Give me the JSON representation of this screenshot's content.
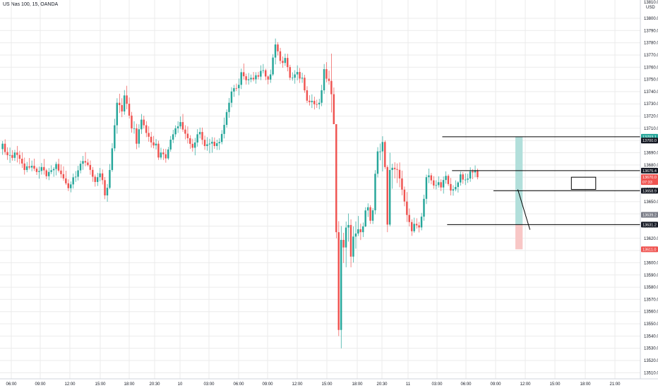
{
  "header": {
    "title": "US Nas 100, 15, OANDA"
  },
  "colors": {
    "up": "#26a69a",
    "down": "#ef5350",
    "grid": "#ebebeb",
    "line": "#000000",
    "highlight_up": "#b2dfdb",
    "highlight_down": "#f8c7c6",
    "price_gray": "#787b86"
  },
  "chart_data": {
    "type": "candlestick",
    "ylim": [
      13505,
      13815
    ],
    "currency_label": "USD",
    "y_ticks": [
      13510,
      13520,
      13530,
      13540,
      13550,
      13560,
      13570,
      13580,
      13590,
      13600,
      13610,
      13620,
      13630,
      13640,
      13650,
      13660,
      13670,
      13680,
      13690,
      13700,
      13710,
      13720,
      13730,
      13740,
      13750,
      13760,
      13770,
      13780,
      13790,
      13800
    ],
    "top_tick_label": "13810.0",
    "x_tick_labels": [
      "06:00",
      "09:00",
      "12:00",
      "15:00",
      "18:00",
      "20:30",
      "10",
      "03:00",
      "06:00",
      "09:00",
      "12:00",
      "15:00",
      "18:00",
      "20:30",
      "11",
      "03:00",
      "06:00",
      "09:00",
      "12:00",
      "15:00",
      "18:00",
      "21:00"
    ],
    "price_badges": [
      {
        "value": 13703.1,
        "label": "13703.1",
        "style": "up"
      },
      {
        "value": 13700.0,
        "label": "13700.0",
        "style": "dark"
      },
      {
        "value": 13675.4,
        "label": "13675.4",
        "style": "dark"
      },
      {
        "value": 13670.0,
        "label": "13670.0",
        "style": "down"
      },
      {
        "value": 13666.0,
        "label": "07:33",
        "style": "down"
      },
      {
        "value": 13658.9,
        "label": "13658.9",
        "style": "dark"
      },
      {
        "value": 13639.2,
        "label": "13639.2",
        "style": "gray"
      },
      {
        "value": 13631.2,
        "label": "13631.2",
        "style": "dark"
      },
      {
        "value": 13611.0,
        "label": "13611.0",
        "style": "down"
      }
    ],
    "drawings": {
      "horizontal_lines": [
        {
          "price": 13703.1,
          "from_bar": 181
        },
        {
          "price": 13675.4,
          "from_bar": 185
        },
        {
          "price": 13658.9,
          "from_bar": 202
        },
        {
          "price": 13631.2,
          "from_bar": 183
        }
      ],
      "trend_line": {
        "from_bar": 212,
        "from_price": 13660,
        "to_bar": 217,
        "to_price": 13627
      },
      "box": {
        "from_bar": 234,
        "to_bar": 244,
        "top": 13670,
        "bottom": 13660
      },
      "highlight_up": {
        "from_bar": 211,
        "to_bar": 214,
        "top": 13703,
        "bottom": 13631
      },
      "highlight_down": {
        "from_bar": 211,
        "to_bar": 214,
        "top": 13631,
        "bottom": 13611
      }
    },
    "series_ohlc": [
      [
        13693.0,
        13699.6,
        13688.3,
        13697.4
      ],
      [
        13697.4,
        13701.0,
        13688.3,
        13690.6
      ],
      [
        13690.6,
        13694.5,
        13684.2,
        13688.0
      ],
      [
        13688.0,
        13694.3,
        13681.7,
        13688.1
      ],
      [
        13688.1,
        13692.1,
        13683.5,
        13685.8
      ],
      [
        13685.8,
        13692.3,
        13683.3,
        13690.2
      ],
      [
        13690.2,
        13695.6,
        13682.1,
        13688.2
      ],
      [
        13688.2,
        13691.7,
        13680.7,
        13685.1
      ],
      [
        13685.1,
        13690.4,
        13677.6,
        13681.2
      ],
      [
        13681.2,
        13686.0,
        13672.1,
        13675.9
      ],
      [
        13675.9,
        13682.5,
        13674.0,
        13678.9
      ],
      [
        13678.9,
        13685.7,
        13676.3,
        13677.9
      ],
      [
        13677.9,
        13683.6,
        13674.8,
        13679.3
      ],
      [
        13679.3,
        13685.2,
        13675.1,
        13677.0
      ],
      [
        13677.0,
        13678.4,
        13671.8,
        13674.3
      ],
      [
        13674.3,
        13678.7,
        13668.8,
        13675.1
      ],
      [
        13675.1,
        13681.6,
        13672.1,
        13678.3
      ],
      [
        13678.3,
        13685.0,
        13672.1,
        13675.6
      ],
      [
        13675.6,
        13676.9,
        13668.3,
        13670.8
      ],
      [
        13670.8,
        13677.5,
        13667.6,
        13674.3
      ],
      [
        13674.3,
        13679.7,
        13672.5,
        13675.7
      ],
      [
        13675.7,
        13678.3,
        13670.4,
        13676.7
      ],
      [
        13676.7,
        13682.6,
        13671.5,
        13680.8
      ],
      [
        13680.8,
        13685.1,
        13673.9,
        13675.4
      ],
      [
        13675.4,
        13680.4,
        13669.3,
        13672.5
      ],
      [
        13672.5,
        13678.9,
        13667.1,
        13669.0
      ],
      [
        13669.0,
        13675.3,
        13663.6,
        13665.0
      ],
      [
        13665.0,
        13668.2,
        13658.6,
        13661.0
      ],
      [
        13661.0,
        13666.5,
        13657.6,
        13664.1
      ],
      [
        13664.1,
        13673.0,
        13660.7,
        13669.9
      ],
      [
        13669.9,
        13675.0,
        13666.2,
        13670.4
      ],
      [
        13670.4,
        13679.3,
        13667.3,
        13675.6
      ],
      [
        13675.6,
        13683.5,
        13673.1,
        13681.0
      ],
      [
        13681.0,
        13687.4,
        13676.0,
        13683.2
      ],
      [
        13683.2,
        13690.5,
        13679.0,
        13682.0
      ],
      [
        13682.0,
        13685.0,
        13678.8,
        13680.0
      ],
      [
        13680.0,
        13683.7,
        13672.0,
        13676.0
      ],
      [
        13676.0,
        13678.3,
        13666.2,
        13670.4
      ],
      [
        13670.4,
        13672.2,
        13662.3,
        13666.1
      ],
      [
        13666.1,
        13673.6,
        13662.8,
        13670.0
      ],
      [
        13670.0,
        13677.6,
        13666.6,
        13673.1
      ],
      [
        13673.1,
        13676.3,
        13664.0,
        13667.6
      ],
      [
        13667.6,
        13670.1,
        13652.0,
        13655.1
      ],
      [
        13655.1,
        13664.5,
        13649.9,
        13661.3
      ],
      [
        13661.3,
        13680.8,
        13660.3,
        13675.9
      ],
      [
        13675.9,
        13697.9,
        13674.4,
        13693.6
      ],
      [
        13693.6,
        13717.8,
        13691.2,
        13712.5
      ],
      [
        13712.5,
        13734.6,
        13705.6,
        13730.9
      ],
      [
        13730.9,
        13738.3,
        13722.5,
        13729.0
      ],
      [
        13729.0,
        13734.6,
        13719.1,
        13723.8
      ],
      [
        13723.8,
        13741.3,
        13721.1,
        13736.9
      ],
      [
        13736.9,
        13744.8,
        13725.6,
        13730.1
      ],
      [
        13730.1,
        13735.2,
        13718.0,
        13720.4
      ],
      [
        13720.4,
        13723.4,
        13706.5,
        13709.9
      ],
      [
        13709.9,
        13715.8,
        13705.6,
        13710.0
      ],
      [
        13710.0,
        13713.7,
        13692.9,
        13697.4
      ],
      [
        13697.4,
        13713.3,
        13694.2,
        13709.2
      ],
      [
        13709.2,
        13721.7,
        13705.4,
        13717.1
      ],
      [
        13717.1,
        13720.3,
        13709.8,
        13712.5
      ],
      [
        13712.5,
        13715.8,
        13702.8,
        13706.2
      ],
      [
        13706.2,
        13711.7,
        13699.0,
        13703.1
      ],
      [
        13703.1,
        13707.1,
        13694.2,
        13698.5
      ],
      [
        13698.5,
        13703.7,
        13693.6,
        13696.0
      ],
      [
        13696.0,
        13701.2,
        13692.6,
        13697.4
      ],
      [
        13697.4,
        13699.8,
        13684.1,
        13686.1
      ],
      [
        13686.1,
        13694.1,
        13684.4,
        13690.2
      ],
      [
        13690.2,
        13693.3,
        13684.1,
        13688.8
      ],
      [
        13688.8,
        13693.2,
        13681.9,
        13685.4
      ],
      [
        13685.4,
        13694.8,
        13684.2,
        13692.7
      ],
      [
        13692.7,
        13703.7,
        13690.9,
        13700.7
      ],
      [
        13700.7,
        13708.8,
        13697.9,
        13705.1
      ],
      [
        13705.1,
        13712.4,
        13702.8,
        13710.0
      ],
      [
        13710.0,
        13715.7,
        13706.2,
        13711.6
      ],
      [
        13711.6,
        13719.7,
        13709.6,
        13715.1
      ],
      [
        13715.1,
        13721.8,
        13707.1,
        13709.0
      ],
      [
        13709.0,
        13712.5,
        13700.9,
        13705.6
      ],
      [
        13705.6,
        13711.6,
        13697.6,
        13701.9
      ],
      [
        13701.9,
        13704.4,
        13693.3,
        13697.3
      ],
      [
        13697.3,
        13701.5,
        13690.9,
        13694.1
      ],
      [
        13694.1,
        13702.2,
        13687.9,
        13698.4
      ],
      [
        13698.4,
        13709.3,
        13695.0,
        13705.1
      ],
      [
        13705.1,
        13710.6,
        13701.7,
        13707.0
      ],
      [
        13707.0,
        13710.6,
        13696.7,
        13700.6
      ],
      [
        13700.6,
        13704.0,
        13692.4,
        13695.5
      ],
      [
        13695.5,
        13702.8,
        13691.7,
        13696.9
      ],
      [
        13696.9,
        13701.4,
        13689.6,
        13697.5
      ],
      [
        13697.5,
        13702.8,
        13690.0,
        13699.0
      ],
      [
        13699.0,
        13702.5,
        13693.2,
        13695.5
      ],
      [
        13695.5,
        13700.7,
        13692.3,
        13697.8
      ],
      [
        13697.8,
        13701.9,
        13692.3,
        13698.8
      ],
      [
        13698.8,
        13708.6,
        13696.9,
        13705.4
      ],
      [
        13705.4,
        13718.8,
        13701.7,
        13712.8
      ],
      [
        13712.8,
        13725.5,
        13710.6,
        13723.3
      ],
      [
        13723.3,
        13734.8,
        13718.6,
        13730.9
      ],
      [
        13730.9,
        13743.6,
        13727.2,
        13740.1
      ],
      [
        13740.1,
        13745.6,
        13735.7,
        13742.9
      ],
      [
        13742.9,
        13746.6,
        13740.5,
        13742.8
      ],
      [
        13742.8,
        13750.7,
        13736.9,
        13745.6
      ],
      [
        13745.6,
        13758.9,
        13742.1,
        13755.9
      ],
      [
        13755.9,
        13763.0,
        13750.0,
        13752.6
      ],
      [
        13752.6,
        13754.7,
        13745.8,
        13749.4
      ],
      [
        13749.4,
        13755.3,
        13745.8,
        13750.1
      ],
      [
        13750.1,
        13754.0,
        13747.7,
        13751.3
      ],
      [
        13751.3,
        13756.1,
        13748.5,
        13750.1
      ],
      [
        13750.1,
        13755.9,
        13746.5,
        13753.4
      ],
      [
        13753.4,
        13756.2,
        13750.1,
        13752.3
      ],
      [
        13752.3,
        13761.5,
        13749.4,
        13757.0
      ],
      [
        13757.0,
        13762.6,
        13754.9,
        13757.5
      ],
      [
        13757.5,
        13758.8,
        13749.4,
        13752.4
      ],
      [
        13752.4,
        13753.2,
        13746.0,
        13749.9
      ],
      [
        13749.9,
        13758.1,
        13747.2,
        13754.1
      ],
      [
        13754.1,
        13770.7,
        13752.8,
        13767.9
      ],
      [
        13767.9,
        13783.5,
        13762.3,
        13778.6
      ],
      [
        13778.6,
        13780.5,
        13769.6,
        13773.0
      ],
      [
        13773.0,
        13775.8,
        13762.6,
        13765.2
      ],
      [
        13765.2,
        13768.8,
        13759.6,
        13763.5
      ],
      [
        13763.5,
        13771.1,
        13761.1,
        13767.6
      ],
      [
        13767.6,
        13771.0,
        13756.6,
        13760.1
      ],
      [
        13760.1,
        13762.0,
        13749.4,
        13751.4
      ],
      [
        13751.4,
        13755.8,
        13749.0,
        13751.4
      ],
      [
        13751.4,
        13757.6,
        13746.5,
        13754.1
      ],
      [
        13754.1,
        13761.5,
        13749.3,
        13756.1
      ],
      [
        13756.1,
        13759.4,
        13747.1,
        13750.7
      ],
      [
        13750.7,
        13755.5,
        13747.2,
        13751.4
      ],
      [
        13751.4,
        13753.8,
        13739.1,
        13741.1
      ],
      [
        13741.1,
        13744.4,
        13730.7,
        13732.6
      ],
      [
        13732.6,
        13737.1,
        13728.6,
        13731.4
      ],
      [
        13731.4,
        13737.8,
        13726.6,
        13732.5
      ],
      [
        13732.5,
        13735.9,
        13725.4,
        13729.7
      ],
      [
        13729.7,
        13733.4,
        13726.7,
        13729.6
      ],
      [
        13729.6,
        13734.2,
        13725.6,
        13730.9
      ],
      [
        13730.9,
        13745.6,
        13728.1,
        13741.1
      ],
      [
        13741.1,
        13762.6,
        13738.2,
        13758.4
      ],
      [
        13758.4,
        13764.1,
        13747.7,
        13750.6
      ],
      [
        13750.6,
        13757.2,
        13745.7,
        13748.8
      ],
      [
        13748.8,
        13771.1,
        13723.0,
        13737.9
      ],
      [
        13737.9,
        13743.4,
        13715.0,
        13713.4
      ],
      [
        13713.4,
        13709.0,
        13620.0,
        13625.0
      ],
      [
        13625.0,
        13634.0,
        13540.0,
        13545.0
      ],
      [
        13545.0,
        13630.0,
        13530.0,
        13618.7
      ],
      [
        13618.7,
        13624.5,
        13599.8,
        13612.5
      ],
      [
        13612.5,
        13633.7,
        13596.3,
        13628.8
      ],
      [
        13628.8,
        13640.3,
        13617.3,
        13630.9
      ],
      [
        13630.9,
        13635.5,
        13596.3,
        13605.0
      ],
      [
        13605.0,
        13629.7,
        13600.2,
        13621.4
      ],
      [
        13621.4,
        13633.8,
        13611.5,
        13623.9
      ],
      [
        13623.9,
        13638.3,
        13621.9,
        13627.4
      ],
      [
        13627.4,
        13632.0,
        13618.6,
        13625.0
      ],
      [
        13625.0,
        13632.9,
        13621.0,
        13629.7
      ],
      [
        13629.7,
        13645.4,
        13629.1,
        13642.8
      ],
      [
        13642.8,
        13648.6,
        13637.4,
        13645.4
      ],
      [
        13645.4,
        13647.1,
        13631.8,
        13634.4
      ],
      [
        13634.4,
        13644.8,
        13631.7,
        13642.9
      ],
      [
        13642.9,
        13675.8,
        13639.6,
        13672.8
      ],
      [
        13672.8,
        13694.6,
        13669.8,
        13691.1
      ],
      [
        13691.1,
        13697.5,
        13683.8,
        13691.1
      ],
      [
        13691.1,
        13703.5,
        13674.7,
        13698.8
      ],
      [
        13698.8,
        13700.1,
        13676.6,
        13678.3
      ],
      [
        13678.3,
        13679.8,
        13625.0,
        13631.2
      ],
      [
        13631.2,
        13690.0,
        13629.8,
        13675.9
      ],
      [
        13675.9,
        13681.0,
        13660.6,
        13677.7
      ],
      [
        13677.7,
        13682.2,
        13669.0,
        13676.6
      ],
      [
        13676.6,
        13681.3,
        13665.2,
        13676.0
      ],
      [
        13676.0,
        13682.1,
        13661.8,
        13669.0
      ],
      [
        13669.0,
        13675.4,
        13655.2,
        13659.8
      ],
      [
        13659.8,
        13662.4,
        13646.2,
        13650.1
      ],
      [
        13650.1,
        13657.8,
        13633.4,
        13639.1
      ],
      [
        13639.1,
        13644.4,
        13629.7,
        13633.3
      ],
      [
        13633.3,
        13635.5,
        13622.0,
        13625.8
      ],
      [
        13625.8,
        13636.9,
        13624.5,
        13631.8
      ],
      [
        13631.8,
        13636.4,
        13627.9,
        13630.6
      ],
      [
        13630.6,
        13633.4,
        13624.8,
        13628.9
      ],
      [
        13628.9,
        13640.8,
        13626.5,
        13637.7
      ],
      [
        13637.7,
        13655.7,
        13634.4,
        13652.3
      ],
      [
        13652.3,
        13672.1,
        13648.0,
        13670.0
      ],
      [
        13670.0,
        13677.0,
        13665.1,
        13671.5
      ],
      [
        13671.5,
        13673.4,
        13664.2,
        13667.4
      ],
      [
        13667.4,
        13670.9,
        13660.5,
        13663.2
      ],
      [
        13663.2,
        13667.5,
        13660.0,
        13663.5
      ],
      [
        13663.5,
        13670.7,
        13661.5,
        13665.9
      ],
      [
        13665.9,
        13668.3,
        13658.6,
        13661.6
      ],
      [
        13661.6,
        13670.6,
        13656.6,
        13667.7
      ],
      [
        13667.7,
        13674.8,
        13664.7,
        13671.1
      ],
      [
        13671.1,
        13672.4,
        13662.8,
        13664.4
      ],
      [
        13664.4,
        13669.4,
        13655.1,
        13659.1
      ],
      [
        13659.1,
        13663.4,
        13654.9,
        13660.1
      ],
      [
        13660.1,
        13667.4,
        13658.5,
        13662.0
      ],
      [
        13662.0,
        13666.8,
        13657.4,
        13665.7
      ],
      [
        13665.7,
        13674.6,
        13663.1,
        13672.3
      ],
      [
        13672.3,
        13674.2,
        13664.6,
        13668.0
      ],
      [
        13668.0,
        13673.1,
        13663.6,
        13668.0
      ],
      [
        13668.0,
        13672.8,
        13665.3,
        13668.9
      ],
      [
        13668.9,
        13678.1,
        13666.2,
        13674.8
      ],
      [
        13674.8,
        13676.6,
        13668.4,
        13673.9
      ],
      [
        13673.9,
        13679.6,
        13670.2,
        13675.4
      ],
      [
        13675.4,
        13677.0,
        13668.2,
        13670.0
      ]
    ]
  }
}
